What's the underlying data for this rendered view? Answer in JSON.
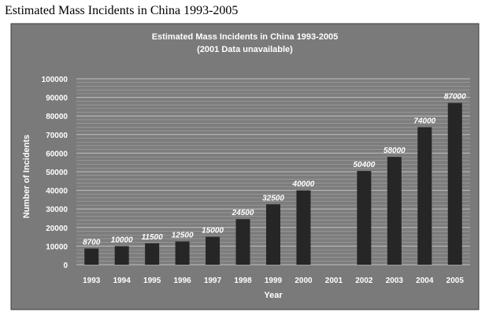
{
  "page_title": "Estimated Mass Incidents in China 1993-2005",
  "chart_data": {
    "type": "bar",
    "title": "Estimated Mass Incidents in China 1993-2005",
    "subtitle": "(2001 Data unavailable)",
    "xlabel": "Year",
    "ylabel": "Number of Incidents",
    "ylim": [
      0,
      100000
    ],
    "yticks": [
      0,
      10000,
      20000,
      30000,
      40000,
      50000,
      60000,
      70000,
      80000,
      90000,
      100000
    ],
    "categories": [
      "1993",
      "1994",
      "1995",
      "1996",
      "1997",
      "1998",
      "1999",
      "2000",
      "2001",
      "2002",
      "2003",
      "2004",
      "2005"
    ],
    "values": [
      8700,
      10000,
      11500,
      12500,
      15000,
      24500,
      32500,
      40000,
      null,
      50400,
      58000,
      74000,
      87000
    ],
    "data_labels": [
      "8700",
      "10000",
      "11500",
      "12500",
      "15000",
      "24500",
      "32500",
      "40000",
      "",
      "50400",
      "58000",
      "74000",
      "87000"
    ],
    "grid": true,
    "legend": "none",
    "colors": {
      "chart_background": "#7a7a7a",
      "plot_background": "#7d7d7d",
      "bar": "#262626",
      "grid": "#c8c8c8",
      "text": "#ffffff"
    }
  }
}
